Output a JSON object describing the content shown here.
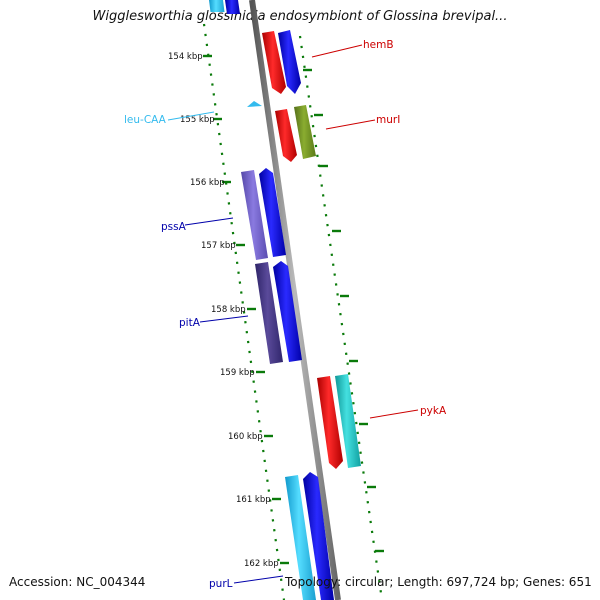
{
  "title": "Wigglesworthia glossinidia endosymbiont of Glossina brevipal...",
  "footer": {
    "accession": "Accession: NC_004344",
    "summary": "Topology: circular; Length: 697,724 bp; Genes: 651"
  },
  "ticks": [
    "154 kbp",
    "155 kbp",
    "156 kbp",
    "157 kbp",
    "158 kbp",
    "159 kbp",
    "160 kbp",
    "161 kbp",
    "162 kbp"
  ],
  "genes": [
    {
      "name": "hemB",
      "color": "#cc0000"
    },
    {
      "name": "murI",
      "color": "#cc0000"
    },
    {
      "name": "leu-CAA",
      "color": "#33bbee"
    },
    {
      "name": "pssA",
      "color": "#0000aa"
    },
    {
      "name": "pitA",
      "color": "#0000aa"
    },
    {
      "name": "pykA",
      "color": "#cc0000"
    },
    {
      "name": "purL",
      "color": "#0000aa"
    }
  ],
  "colors": {
    "backbone": "#888888",
    "ticks": "#0a7a0a",
    "red": "#ff0000",
    "blue": "#0000ff",
    "cyan": "#22cccc",
    "skyblue": "#33ccff",
    "olive": "#7a9a20",
    "violet": "#7766cc",
    "darkviolet": "#4a3a88"
  }
}
